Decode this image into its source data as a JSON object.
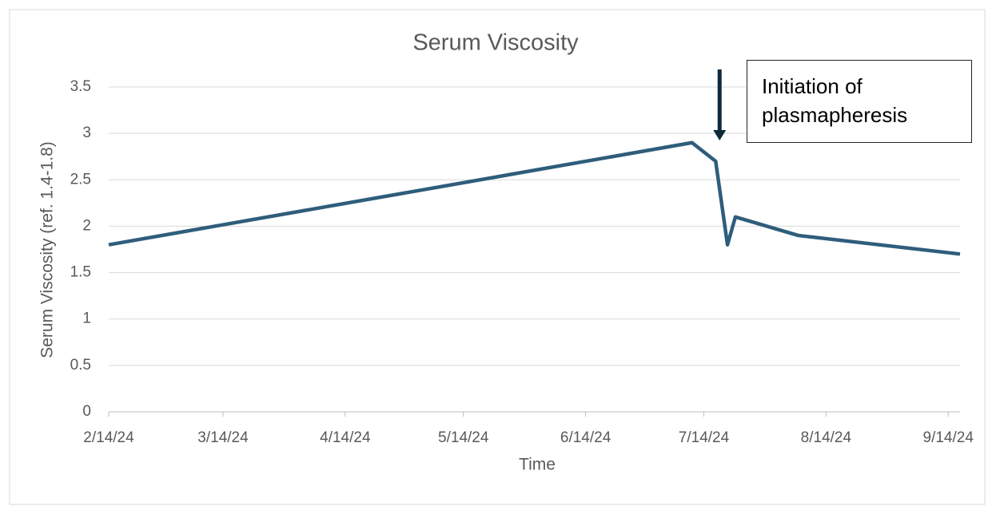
{
  "chart_data": {
    "type": "line",
    "title": "Serum Viscosity",
    "x_label": "Time",
    "y_label": "Serum Viscosity (ref. 1.4-1.8)",
    "x": [
      "2024-02-14",
      "2024-07-11",
      "2024-07-17",
      "2024-07-20",
      "2024-07-22",
      "2024-08-07",
      "2024-09-17"
    ],
    "series": [
      {
        "name": "Serum Viscosity",
        "color": "#2f5d7c",
        "values": [
          1.8,
          2.9,
          2.7,
          1.8,
          2.1,
          1.9,
          1.7
        ]
      }
    ],
    "xlim": [
      "2024-02-14",
      "2024-09-17"
    ],
    "xticks": [
      {
        "value": "2024-02-14",
        "label": "2/14/24"
      },
      {
        "value": "2024-03-14",
        "label": "3/14/24"
      },
      {
        "value": "2024-04-14",
        "label": "4/14/24"
      },
      {
        "value": "2024-05-14",
        "label": "5/14/24"
      },
      {
        "value": "2024-06-14",
        "label": "6/14/24"
      },
      {
        "value": "2024-07-14",
        "label": "7/14/24"
      },
      {
        "value": "2024-08-14",
        "label": "8/14/24"
      },
      {
        "value": "2024-09-14",
        "label": "9/14/24"
      }
    ],
    "ylim": [
      0,
      3.5
    ],
    "yticks": [
      0,
      0.5,
      1,
      1.5,
      2,
      2.5,
      3,
      3.5
    ],
    "grid": true,
    "annotation": {
      "text": "Initiation of plasmapheresis",
      "x": "2024-07-18"
    }
  }
}
